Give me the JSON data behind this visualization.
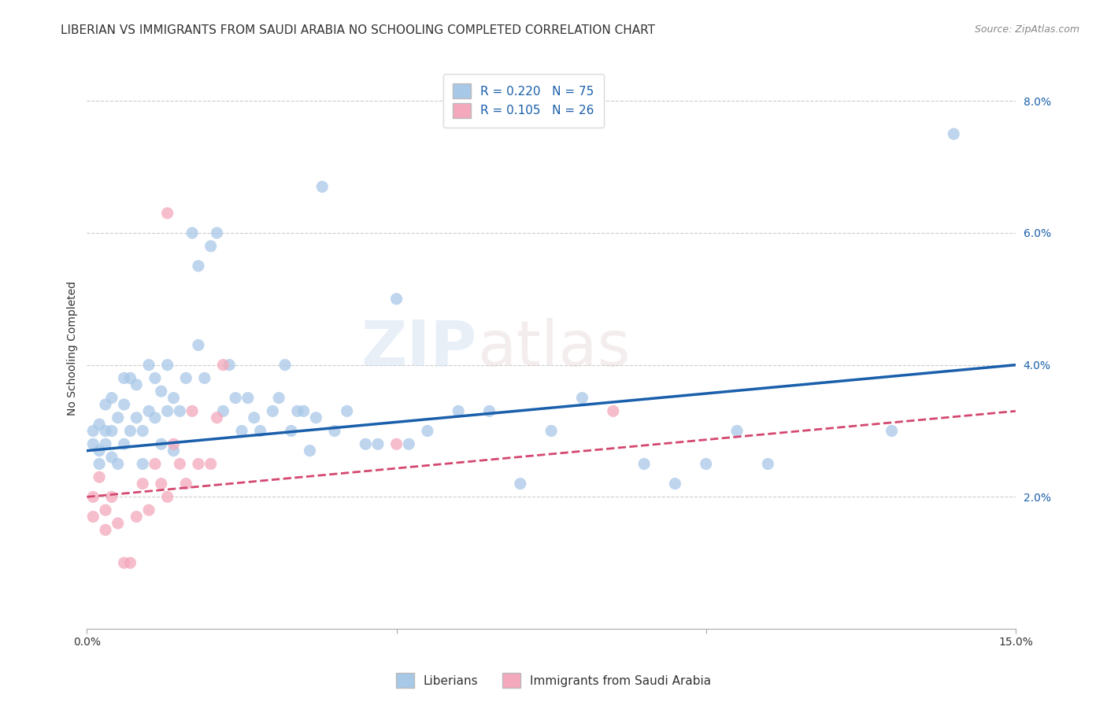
{
  "title": "LIBERIAN VS IMMIGRANTS FROM SAUDI ARABIA NO SCHOOLING COMPLETED CORRELATION CHART",
  "source": "Source: ZipAtlas.com",
  "ylabel": "No Schooling Completed",
  "xlim": [
    0.0,
    0.15
  ],
  "ylim": [
    0.0,
    0.085
  ],
  "xticks": [
    0.0,
    0.05,
    0.1,
    0.15
  ],
  "xtick_labels": [
    "0.0%",
    "",
    "",
    "15.0%"
  ],
  "yticks": [
    0.0,
    0.02,
    0.04,
    0.06,
    0.08
  ],
  "ytick_labels": [
    "",
    "2.0%",
    "4.0%",
    "6.0%",
    "8.0%"
  ],
  "legend1_label": "R = 0.220   N = 75",
  "legend2_label": "R = 0.105   N = 26",
  "legend_bottom1": "Liberians",
  "legend_bottom2": "Immigrants from Saudi Arabia",
  "blue_color": "#A8C8E8",
  "pink_color": "#F4A8BB",
  "line_blue": "#1A5FAB",
  "line_pink": "#D44870",
  "background": "#FFFFFF",
  "grid_color": "#CCCCCC",
  "blue_R": 0.22,
  "pink_R": 0.105,
  "blue_N": 75,
  "pink_N": 26,
  "blue_line_start_y": 0.027,
  "blue_line_end_y": 0.04,
  "pink_line_start_y": 0.02,
  "pink_line_end_y": 0.033,
  "blue_x": [
    0.001,
    0.001,
    0.002,
    0.002,
    0.002,
    0.003,
    0.003,
    0.003,
    0.004,
    0.004,
    0.004,
    0.005,
    0.005,
    0.006,
    0.006,
    0.006,
    0.007,
    0.007,
    0.008,
    0.008,
    0.009,
    0.009,
    0.01,
    0.01,
    0.011,
    0.011,
    0.012,
    0.012,
    0.013,
    0.013,
    0.014,
    0.014,
    0.015,
    0.016,
    0.017,
    0.018,
    0.018,
    0.019,
    0.02,
    0.021,
    0.022,
    0.023,
    0.024,
    0.025,
    0.026,
    0.027,
    0.028,
    0.03,
    0.031,
    0.032,
    0.033,
    0.034,
    0.035,
    0.036,
    0.037,
    0.038,
    0.04,
    0.042,
    0.045,
    0.047,
    0.05,
    0.052,
    0.055,
    0.06,
    0.065,
    0.07,
    0.075,
    0.08,
    0.09,
    0.095,
    0.1,
    0.105,
    0.11,
    0.13,
    0.14
  ],
  "blue_y": [
    0.03,
    0.028,
    0.031,
    0.027,
    0.025,
    0.034,
    0.03,
    0.028,
    0.035,
    0.03,
    0.026,
    0.032,
    0.025,
    0.038,
    0.034,
    0.028,
    0.038,
    0.03,
    0.037,
    0.032,
    0.03,
    0.025,
    0.04,
    0.033,
    0.038,
    0.032,
    0.036,
    0.028,
    0.04,
    0.033,
    0.035,
    0.027,
    0.033,
    0.038,
    0.06,
    0.055,
    0.043,
    0.038,
    0.058,
    0.06,
    0.033,
    0.04,
    0.035,
    0.03,
    0.035,
    0.032,
    0.03,
    0.033,
    0.035,
    0.04,
    0.03,
    0.033,
    0.033,
    0.027,
    0.032,
    0.067,
    0.03,
    0.033,
    0.028,
    0.028,
    0.05,
    0.028,
    0.03,
    0.033,
    0.033,
    0.022,
    0.03,
    0.035,
    0.025,
    0.022,
    0.025,
    0.03,
    0.025,
    0.03,
    0.075
  ],
  "pink_x": [
    0.001,
    0.001,
    0.002,
    0.003,
    0.003,
    0.004,
    0.005,
    0.006,
    0.007,
    0.008,
    0.009,
    0.01,
    0.011,
    0.012,
    0.013,
    0.013,
    0.014,
    0.015,
    0.016,
    0.017,
    0.018,
    0.02,
    0.021,
    0.022,
    0.05,
    0.085
  ],
  "pink_y": [
    0.02,
    0.017,
    0.023,
    0.018,
    0.015,
    0.02,
    0.016,
    0.01,
    0.01,
    0.017,
    0.022,
    0.018,
    0.025,
    0.022,
    0.02,
    0.063,
    0.028,
    0.025,
    0.022,
    0.033,
    0.025,
    0.025,
    0.032,
    0.04,
    0.028,
    0.033
  ],
  "title_fontsize": 11,
  "source_fontsize": 9,
  "axis_label_fontsize": 10,
  "tick_fontsize": 10,
  "legend_fontsize": 11
}
